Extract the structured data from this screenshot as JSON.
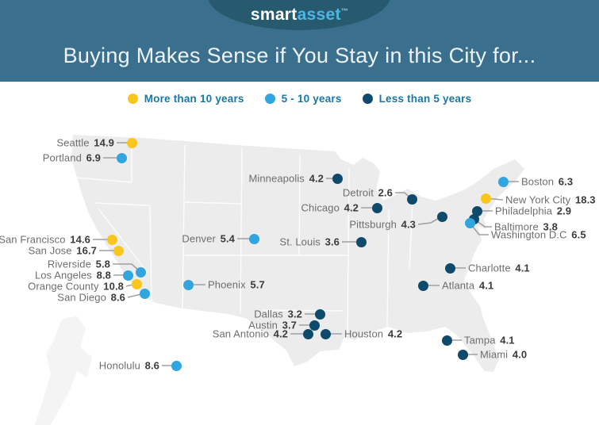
{
  "header": {
    "logo": {
      "brand_primary": "smart",
      "brand_secondary": "asset",
      "trademark": "™"
    },
    "title": "Buying Makes Sense if You Stay in this City for..."
  },
  "legend": {
    "items": [
      {
        "key": "more10",
        "label": "More than 10 years",
        "color": "#f9c71c"
      },
      {
        "key": "5to10",
        "label": "5 - 10 years",
        "color": "#31a5de"
      },
      {
        "key": "less5",
        "label": "Less than 5 years",
        "color": "#0d4a6b"
      }
    ]
  },
  "colors": {
    "header_bg": "#3a708e",
    "logo_ellipse": "#27596f",
    "brand_secondary_text": "#4cb6e4",
    "legend_text": "#1878a8",
    "city_name_text": "#6d6e71",
    "city_value_text": "#3a3b3d",
    "connector_line": "#9fa0a3",
    "map_fill": "#ececec",
    "alaska_fill": "#f4f4f4"
  },
  "chart_data": {
    "type": "scatter",
    "subtype": "us-map-labeled-city-points",
    "title": "Buying Makes Sense if You Stay in this City for...",
    "unit": "years",
    "legend_position": "top",
    "categories": [
      "More than 10 years",
      "5 - 10 years",
      "Less than 5 years"
    ],
    "points": [
      {
        "city": "Seattle",
        "years": 14.9,
        "value": "14.9",
        "category": "More than 10 years",
        "key": "more10",
        "dot": [
          166,
          180
        ],
        "label": [
          144,
          180
        ],
        "side": "left"
      },
      {
        "city": "Portland",
        "years": 6.9,
        "value": "6.9",
        "category": "5 - 10 years",
        "key": "5to10",
        "dot": [
          153,
          199
        ],
        "label": [
          127,
          199
        ],
        "side": "left"
      },
      {
        "city": "San Francisco",
        "years": 14.6,
        "value": "14.6",
        "category": "More than 10 years",
        "key": "more10",
        "dot": [
          141,
          302
        ],
        "label": [
          114,
          302
        ],
        "side": "left"
      },
      {
        "city": "San Jose",
        "years": 16.7,
        "value": "16.7",
        "category": "More than 10 years",
        "key": "more10",
        "dot": [
          149,
          316
        ],
        "label": [
          122,
          316
        ],
        "side": "left"
      },
      {
        "city": "Riverside",
        "years": 5.8,
        "value": "5.8",
        "category": "5 - 10 years",
        "key": "5to10",
        "dot": [
          177,
          343
        ],
        "label": [
          139,
          333
        ],
        "side": "left",
        "elbow": [
          166,
          333
        ]
      },
      {
        "city": "Los Angeles",
        "years": 8.8,
        "value": "8.8",
        "category": "5 - 10 years",
        "key": "5to10",
        "dot": [
          161,
          347
        ],
        "label": [
          140,
          347
        ],
        "side": "left"
      },
      {
        "city": "Orange County",
        "years": 10.8,
        "value": "10.8",
        "category": "More than 10 years",
        "key": "more10",
        "dot": [
          172,
          358
        ],
        "label": [
          156,
          361
        ],
        "side": "left"
      },
      {
        "city": "San Diego",
        "years": 8.6,
        "value": "8.6",
        "category": "5 - 10 years",
        "key": "5to10",
        "dot": [
          182,
          370
        ],
        "label": [
          158,
          375
        ],
        "side": "left"
      },
      {
        "city": "Honolulu",
        "years": 8.6,
        "value": "8.6",
        "category": "5 - 10 years",
        "key": "5to10",
        "dot": [
          222,
          461
        ],
        "label": [
          201,
          461
        ],
        "side": "left"
      },
      {
        "city": "Phoenix",
        "years": 5.7,
        "value": "5.7",
        "category": "5 - 10 years",
        "key": "5to10",
        "dot": [
          237,
          359
        ],
        "label": [
          262,
          359
        ],
        "side": "right"
      },
      {
        "city": "Denver",
        "years": 5.4,
        "value": "5.4",
        "category": "5 - 10 years",
        "key": "5to10",
        "dot": [
          320,
          301
        ],
        "label": [
          296,
          301
        ],
        "side": "left"
      },
      {
        "city": "Minneapolis",
        "years": 4.2,
        "value": "4.2",
        "category": "Less than 5 years",
        "key": "less5",
        "dot": [
          425,
          225
        ],
        "label": [
          408,
          225
        ],
        "side": "left"
      },
      {
        "city": "Detroit",
        "years": 2.6,
        "value": "2.6",
        "category": "Less than 5 years",
        "key": "less5",
        "dot": [
          519,
          251
        ],
        "label": [
          495,
          243
        ],
        "side": "left",
        "elbow": [
          510,
          243
        ]
      },
      {
        "city": "Chicago",
        "years": 4.2,
        "value": "4.2",
        "category": "Less than 5 years",
        "key": "less5",
        "dot": [
          475,
          262
        ],
        "label": [
          452,
          262
        ],
        "side": "left"
      },
      {
        "city": "St. Louis",
        "years": 3.6,
        "value": "3.6",
        "category": "Less than 5 years",
        "key": "less5",
        "dot": [
          455,
          305
        ],
        "label": [
          428,
          305
        ],
        "side": "left"
      },
      {
        "city": "Pittsburgh",
        "years": 4.3,
        "value": "4.3",
        "category": "Less than 5 years",
        "key": "less5",
        "dot": [
          557,
          273
        ],
        "label": [
          524,
          283
        ],
        "side": "left",
        "elbow": [
          543,
          281
        ]
      },
      {
        "city": "Dallas",
        "years": 3.2,
        "value": "3.2",
        "category": "Less than 5 years",
        "key": "less5",
        "dot": [
          403,
          396
        ],
        "label": [
          381,
          396
        ],
        "side": "left"
      },
      {
        "city": "Austin",
        "years": 3.7,
        "value": "3.7",
        "category": "Less than 5 years",
        "key": "less5",
        "dot": [
          396,
          410
        ],
        "label": [
          374,
          410
        ],
        "side": "left"
      },
      {
        "city": "San Antonio",
        "years": 4.2,
        "value": "4.2",
        "category": "Less than 5 years",
        "key": "less5",
        "dot": [
          388,
          421
        ],
        "label": [
          363,
          421
        ],
        "side": "left"
      },
      {
        "city": "Houston",
        "years": 4.2,
        "value": "4.2",
        "category": "Less than 5 years",
        "key": "less5",
        "dot": [
          410,
          421
        ],
        "label": [
          434,
          421
        ],
        "side": "right"
      },
      {
        "city": "Charlotte",
        "years": 4.1,
        "value": "4.1",
        "category": "Less than 5 years",
        "key": "less5",
        "dot": [
          567,
          338
        ],
        "label": [
          590,
          338
        ],
        "side": "right"
      },
      {
        "city": "Atlanta",
        "years": 4.1,
        "value": "4.1",
        "category": "Less than 5 years",
        "key": "less5",
        "dot": [
          533,
          360
        ],
        "label": [
          557,
          360
        ],
        "side": "right"
      },
      {
        "city": "Tampa",
        "years": 4.1,
        "value": "4.1",
        "category": "Less than 5 years",
        "key": "less5",
        "dot": [
          563,
          429
        ],
        "label": [
          585,
          429
        ],
        "side": "right"
      },
      {
        "city": "Miami",
        "years": 4.0,
        "value": "4.0",
        "category": "Less than 5 years",
        "key": "less5",
        "dot": [
          583,
          447
        ],
        "label": [
          605,
          447
        ],
        "side": "right"
      },
      {
        "city": "Boston",
        "years": 6.3,
        "value": "6.3",
        "category": "5 - 10 years",
        "key": "5to10",
        "dot": [
          634,
          229
        ],
        "label": [
          657,
          229
        ],
        "side": "right"
      },
      {
        "city": "New York City",
        "years": 18.3,
        "value": "18.3",
        "category": "More than 10 years",
        "key": "more10",
        "dot": [
          612,
          250
        ],
        "label": [
          637,
          252
        ],
        "side": "right"
      },
      {
        "city": "Philadelphia",
        "years": 2.9,
        "value": "2.9",
        "category": "Less than 5 years",
        "key": "less5",
        "dot": [
          601,
          266
        ],
        "label": [
          624,
          266
        ],
        "side": "right"
      },
      {
        "city": "Baltimore",
        "years": 3.8,
        "value": "3.8",
        "category": "Less than 5 years",
        "key": "less5",
        "dot": [
          597,
          276
        ],
        "label": [
          623,
          286
        ],
        "side": "right",
        "elbow": [
          611,
          286
        ]
      },
      {
        "city": "Washington D.C",
        "years": 6.5,
        "value": "6.5",
        "category": "5 - 10 years",
        "key": "5to10",
        "dot": [
          592,
          281
        ],
        "label": [
          619,
          296
        ],
        "side": "right",
        "elbow": [
          604,
          296
        ]
      }
    ]
  }
}
